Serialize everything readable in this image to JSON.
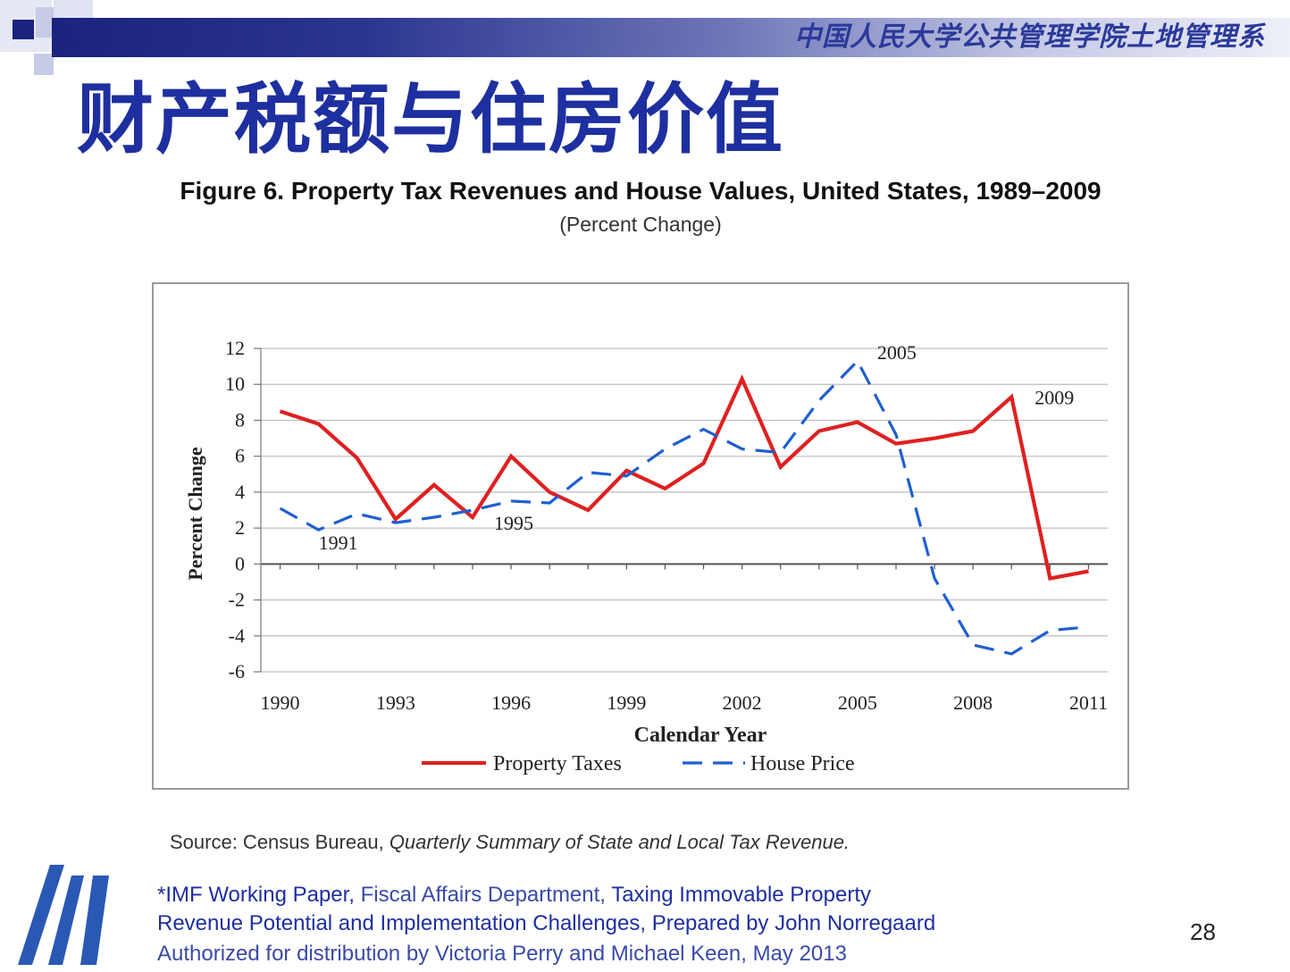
{
  "header": {
    "institution": "中国人民大学公共管理学院土地管理系",
    "colors": {
      "bar_dark": "#1a237e",
      "title_blue": "#1e2fa0"
    }
  },
  "slide": {
    "title": "财产税额与住房价值",
    "figure_title": "Figure 6. Property Tax Revenues and House Values, United States, 1989–2009",
    "figure_subtitle": "(Percent Change)",
    "source_prefix": "Source: Census Bureau, ",
    "source_title": "Quarterly Summary of State and Local Tax Revenue.",
    "ref_line1_a": "*IMF Working Paper,",
    "ref_line1_b": " Fiscal Affairs Department, ",
    "ref_line1_c": "Taxing Immovable Property",
    "ref_line2": "Revenue Potential and Implementation Challenges, Prepared by John Norregaard",
    "ref_line3": "Authorized for distribution by Victoria Perry and Michael Keen, May 2013",
    "page_number": "28",
    "logo_icon": "imf-stripes-logo"
  },
  "chart_data": {
    "type": "line",
    "xlabel": "Calendar Year",
    "ylabel": "Percent Change",
    "xlim": [
      1989.5,
      1990.0,
      2011.5
    ],
    "x_range": [
      1989.5,
      2011.5
    ],
    "ylim": [
      -6,
      12
    ],
    "x_ticks": [
      1990,
      1993,
      1996,
      1999,
      2002,
      2005,
      2008,
      2011
    ],
    "y_ticks": [
      -6,
      -4,
      -2,
      0,
      2,
      4,
      6,
      8,
      10,
      12
    ],
    "grid": true,
    "legend_position": "bottom",
    "series": [
      {
        "name": "Property Taxes",
        "color": "#e02020",
        "style": "solid",
        "x": [
          1990,
          1991,
          1992,
          1993,
          1994,
          1995,
          1996,
          1997,
          1998,
          1999,
          2000,
          2001,
          2002,
          2003,
          2004,
          2005,
          2006,
          2007,
          2008,
          2009,
          2010,
          2011
        ],
        "values": [
          8.5,
          7.8,
          5.9,
          2.5,
          4.4,
          2.6,
          6.0,
          4.0,
          3.0,
          5.2,
          4.2,
          5.6,
          10.3,
          5.4,
          7.4,
          7.9,
          6.7,
          7.0,
          7.4,
          9.3,
          -0.8,
          -0.4
        ]
      },
      {
        "name": "House Price",
        "color": "#1f5fd0",
        "style": "dashed",
        "x": [
          1990,
          1991,
          1992,
          1993,
          1994,
          1995,
          1996,
          1997,
          1998,
          1999,
          2000,
          2001,
          2002,
          2003,
          2004,
          2005,
          2006,
          2007,
          2008,
          2009,
          2010,
          2011
        ],
        "values": [
          3.1,
          1.9,
          2.8,
          2.3,
          2.6,
          3.0,
          3.5,
          3.4,
          5.1,
          4.9,
          6.4,
          7.5,
          6.4,
          6.2,
          9.1,
          11.3,
          7.2,
          -0.8,
          -4.5,
          -5.0,
          -3.7,
          -3.5
        ]
      }
    ],
    "annotations": [
      {
        "text": "1991",
        "x": 1991,
        "y": 1.9
      },
      {
        "text": "1995",
        "x": 1995,
        "y": 3.0
      },
      {
        "text": "2005",
        "x": 2005,
        "y": 11.3
      },
      {
        "text": "2009",
        "x": 2009,
        "y": 9.3
      }
    ]
  }
}
